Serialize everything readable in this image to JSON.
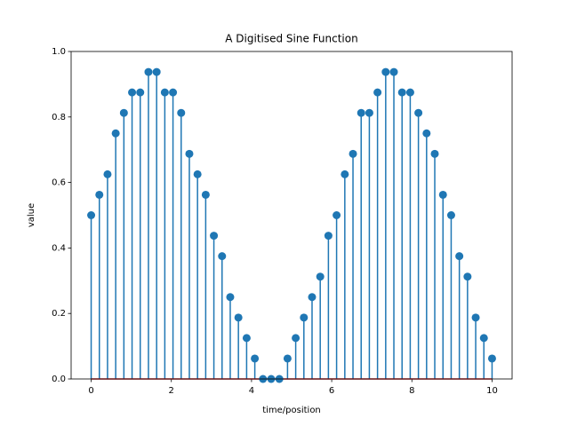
{
  "chart_data": {
    "type": "stem",
    "title": "A Digitised Sine Function",
    "x_label": "time/position",
    "y_label": "value",
    "color": "#1f77b4",
    "baseline_color": "#d62728",
    "baseline": 0,
    "x": [
      0,
      0.204,
      0.408,
      0.612,
      0.816,
      1.02,
      1.224,
      1.429,
      1.633,
      1.837,
      2.041,
      2.245,
      2.449,
      2.653,
      2.857,
      3.061,
      3.265,
      3.469,
      3.673,
      3.878,
      4.082,
      4.286,
      4.49,
      4.694,
      4.898,
      5.102,
      5.306,
      5.51,
      5.714,
      5.918,
      6.122,
      6.327,
      6.531,
      6.735,
      6.939,
      7.143,
      7.347,
      7.551,
      7.755,
      7.959,
      8.163,
      8.367,
      8.571,
      8.776,
      8.98,
      9.184,
      9.388,
      9.592,
      9.796,
      10
    ],
    "values": [
      0.5,
      0.5625,
      0.625,
      0.75,
      0.8125,
      0.875,
      0.875,
      0.9375,
      0.9375,
      0.875,
      0.875,
      0.8125,
      0.6875,
      0.625,
      0.5625,
      0.4375,
      0.375,
      0.25,
      0.1875,
      0.125,
      0.0625,
      0,
      0,
      0,
      0.0625,
      0.125,
      0.1875,
      0.25,
      0.3125,
      0.4375,
      0.5,
      0.625,
      0.6875,
      0.8125,
      0.8125,
      0.875,
      0.9375,
      0.9375,
      0.875,
      0.875,
      0.8125,
      0.75,
      0.6875,
      0.5625,
      0.5,
      0.375,
      0.3125,
      0.1875,
      0.125,
      0.0625
    ],
    "xlim": [
      -0.5,
      10.5
    ],
    "ylim": [
      0,
      1
    ],
    "xticks": [
      0,
      2,
      4,
      6,
      8,
      10
    ],
    "yticks": [
      {
        "value": 0,
        "label": "0.0"
      },
      0.2,
      0.4,
      0.6,
      0.8,
      {
        "value": 1,
        "label": "1.0"
      }
    ]
  }
}
